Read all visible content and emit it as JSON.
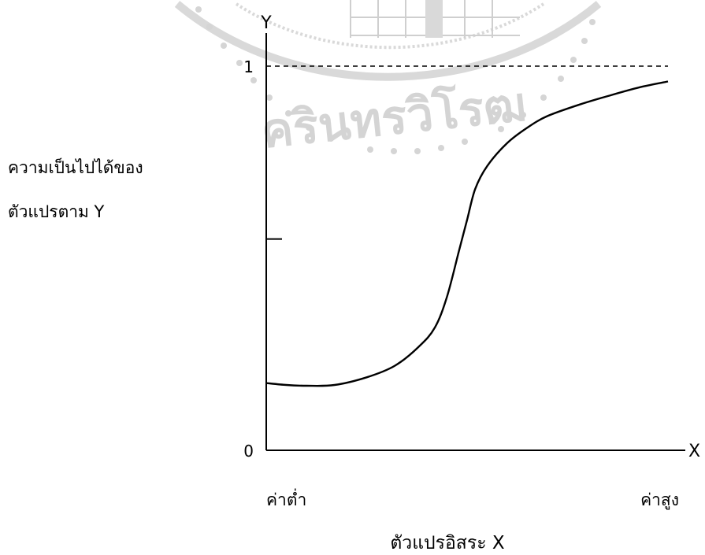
{
  "chart_data": {
    "type": "line",
    "title": "",
    "x_axis_letter": "X",
    "y_axis_letter": "Y",
    "ylabel_lines": [
      "ความเป็นไปได้ของ",
      "ตัวแปรตาม Y"
    ],
    "xlabel": "ตัวแปรอิสระ X",
    "x_tick_labels": [
      "ค่าต่ำ",
      "ค่าสูง"
    ],
    "y_tick_labels": [
      "0",
      "1"
    ],
    "ylim": [
      0,
      1
    ],
    "xlim": [
      0,
      1
    ],
    "reference_line": {
      "y": 1,
      "style": "dashed"
    },
    "mid_tick": {
      "y": 0.55
    },
    "series": [
      {
        "x": [
          0.0,
          0.05,
          0.1,
          0.17,
          0.25,
          0.32,
          0.38,
          0.42,
          0.45,
          0.48,
          0.5,
          0.52,
          0.55,
          0.6,
          0.65,
          0.7,
          0.78,
          0.86,
          0.93,
          1.0
        ],
        "values": [
          0.175,
          0.17,
          0.168,
          0.17,
          0.19,
          0.22,
          0.27,
          0.32,
          0.4,
          0.52,
          0.6,
          0.68,
          0.74,
          0.8,
          0.84,
          0.87,
          0.9,
          0.925,
          0.945,
          0.96
        ]
      }
    ]
  },
  "watermark": {
    "color": "#d4d4d4",
    "text": "ครินทรวิโรฒ"
  }
}
